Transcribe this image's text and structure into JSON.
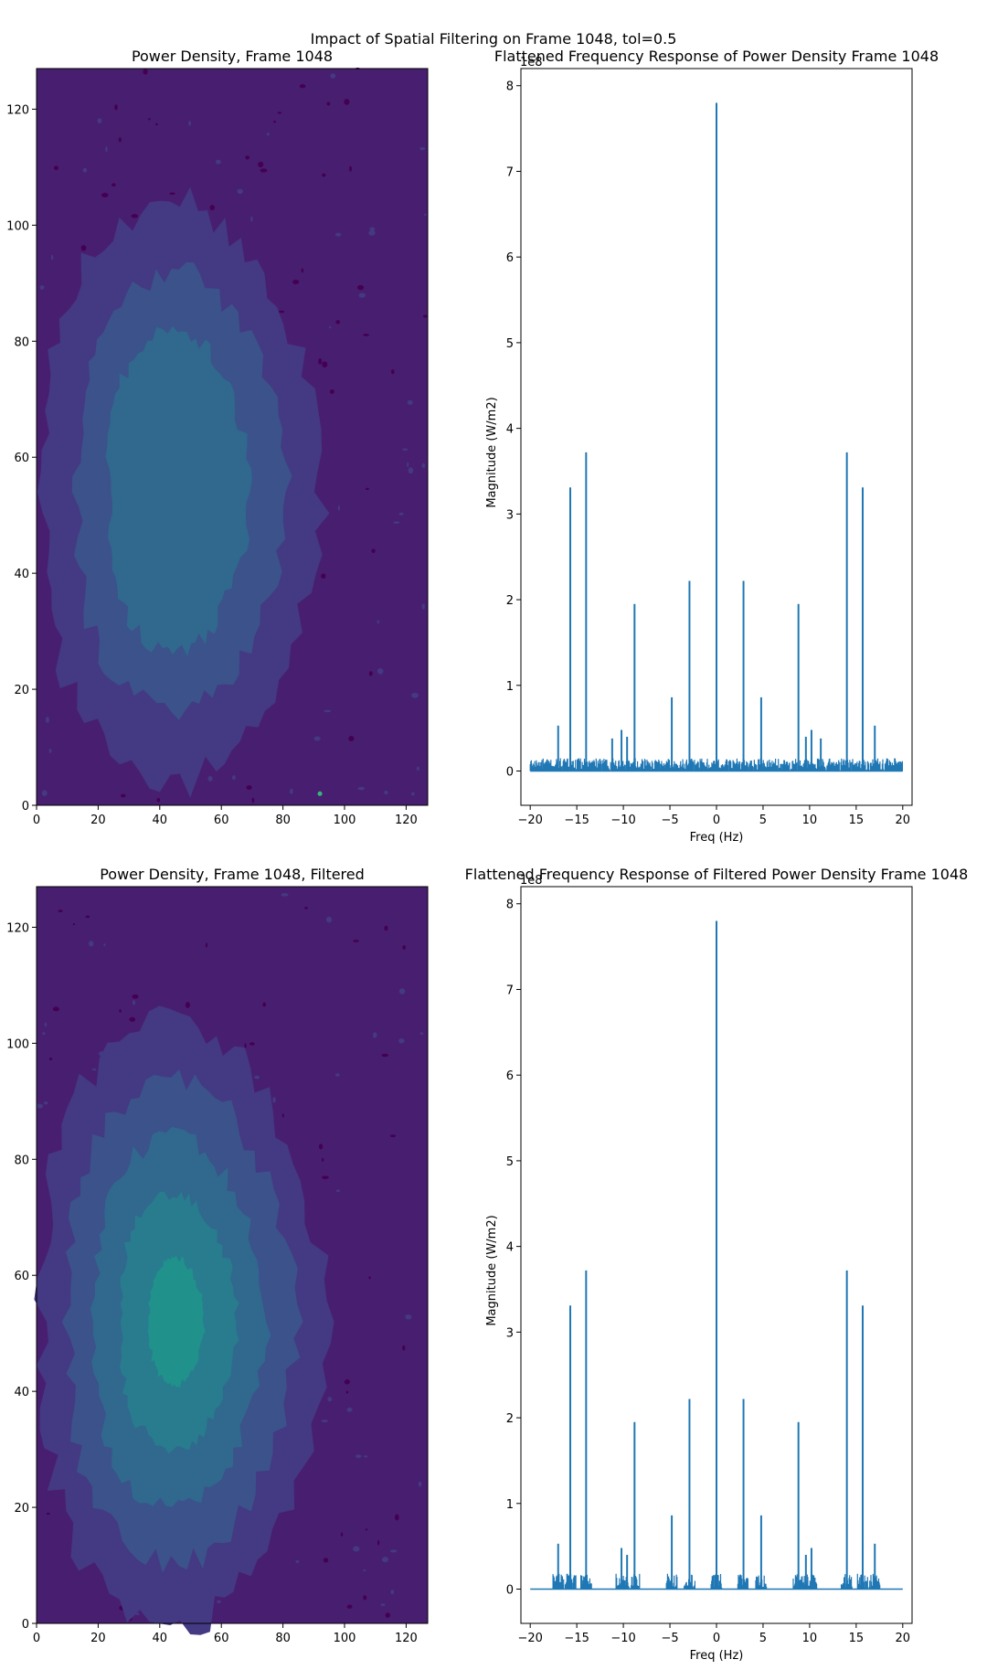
{
  "figure": {
    "suptitle": "Impact of Spatial Filtering on Frame 1048, tol=0.5"
  },
  "colors": {
    "line": "#1f77b4",
    "contour_levels": [
      "#440154",
      "#481f70",
      "#443983",
      "#3b528b",
      "#31688e",
      "#287c8e",
      "#21918c",
      "#20a486",
      "#35b779"
    ],
    "axes": "#000000",
    "background": "#ffffff"
  },
  "chart_data": [
    {
      "id": "contour-top",
      "type": "heatmap",
      "title": "Power Density, Frame 1048",
      "xlabel": "",
      "ylabel": "",
      "xlim": [
        0,
        127
      ],
      "ylim": [
        0,
        127
      ],
      "xticks": [
        0,
        20,
        40,
        60,
        80,
        100,
        120
      ],
      "yticks": [
        0,
        20,
        40,
        60,
        80,
        100,
        120
      ],
      "blob": {
        "center": [
          45,
          54
        ],
        "levels": [
          {
            "level": 1,
            "rx": 45,
            "ry": 50
          },
          {
            "level": 2,
            "rx": 34,
            "ry": 38
          },
          {
            "level": 3,
            "rx": 23,
            "ry": 28
          }
        ]
      },
      "hotspots": [
        [
          92,
          2
        ]
      ]
    },
    {
      "id": "spectrum-top",
      "type": "line",
      "title": "Flattened Frequency Response of Power Density Frame 1048",
      "xlabel": "Freq (Hz)",
      "ylabel": "Magnitude (W/m2)",
      "y_scale_label": "1e8",
      "xlim": [
        -21,
        21
      ],
      "ylim": [
        -0.4,
        8.2
      ],
      "xticks": [
        -20,
        -15,
        -10,
        -5,
        0,
        5,
        10,
        15,
        20
      ],
      "yticks": [
        0,
        1,
        2,
        3,
        4,
        5,
        6,
        7,
        8
      ],
      "noise_floor": 0.15,
      "noise_range": [
        -20,
        20
      ],
      "peaks": [
        {
          "x": 0,
          "y": 7.8
        },
        {
          "x": -14,
          "y": 3.72
        },
        {
          "x": 14,
          "y": 3.72
        },
        {
          "x": -15.7,
          "y": 3.31
        },
        {
          "x": 15.7,
          "y": 3.31
        },
        {
          "x": -2.9,
          "y": 2.22
        },
        {
          "x": 2.9,
          "y": 2.22
        },
        {
          "x": -8.8,
          "y": 1.95
        },
        {
          "x": 8.8,
          "y": 1.95
        },
        {
          "x": -4.8,
          "y": 0.86
        },
        {
          "x": 4.8,
          "y": 0.86
        },
        {
          "x": -17,
          "y": 0.53
        },
        {
          "x": 17,
          "y": 0.53
        },
        {
          "x": -10.2,
          "y": 0.48
        },
        {
          "x": 10.2,
          "y": 0.48
        },
        {
          "x": -9.6,
          "y": 0.4
        },
        {
          "x": 9.6,
          "y": 0.4
        },
        {
          "x": -11.2,
          "y": 0.38
        },
        {
          "x": 11.2,
          "y": 0.38
        }
      ]
    },
    {
      "id": "contour-bottom",
      "type": "heatmap",
      "title": "Power Density, Frame 1048, Filtered",
      "xlabel": "",
      "ylabel": "",
      "xlim": [
        0,
        127
      ],
      "ylim": [
        0,
        127
      ],
      "xticks": [
        0,
        20,
        40,
        60,
        80,
        100,
        120
      ],
      "yticks": [
        0,
        20,
        40,
        60,
        80,
        100,
        120
      ],
      "blob": {
        "center": [
          45,
          52
        ],
        "levels": [
          {
            "level": 1,
            "rx": 46,
            "ry": 52
          },
          {
            "level": 2,
            "rx": 37,
            "ry": 42
          },
          {
            "level": 3,
            "rx": 28,
            "ry": 32
          },
          {
            "level": 4,
            "rx": 19,
            "ry": 22
          },
          {
            "level": 5,
            "rx": 9,
            "ry": 11
          }
        ]
      },
      "hotspots": []
    },
    {
      "id": "spectrum-bottom",
      "type": "line",
      "title": "Flattened Frequency Response of Filtered Power Density Frame 1048",
      "xlabel": "Freq (Hz)",
      "ylabel": "Magnitude (W/m2)",
      "y_scale_label": "1e8",
      "xlim": [
        -21,
        21
      ],
      "ylim": [
        -0.4,
        8.2
      ],
      "xticks": [
        -20,
        -15,
        -10,
        -5,
        0,
        5,
        10,
        15,
        20
      ],
      "yticks": [
        0,
        1,
        2,
        3,
        4,
        5,
        6,
        7,
        8
      ],
      "noise_floor": 0.06,
      "noise_range": [
        -17.8,
        17.8
      ],
      "peaks": [
        {
          "x": 0,
          "y": 7.8
        },
        {
          "x": -14,
          "y": 3.72
        },
        {
          "x": 14,
          "y": 3.72
        },
        {
          "x": -15.7,
          "y": 3.31
        },
        {
          "x": 15.7,
          "y": 3.31
        },
        {
          "x": -2.9,
          "y": 2.22
        },
        {
          "x": 2.9,
          "y": 2.22
        },
        {
          "x": -8.8,
          "y": 1.95
        },
        {
          "x": 8.8,
          "y": 1.95
        },
        {
          "x": -4.8,
          "y": 0.86
        },
        {
          "x": 4.8,
          "y": 0.86
        },
        {
          "x": -17,
          "y": 0.53
        },
        {
          "x": 17,
          "y": 0.53
        },
        {
          "x": -10.2,
          "y": 0.48
        },
        {
          "x": 10.2,
          "y": 0.48
        },
        {
          "x": -9.6,
          "y": 0.4
        },
        {
          "x": 9.6,
          "y": 0.4
        }
      ]
    }
  ]
}
